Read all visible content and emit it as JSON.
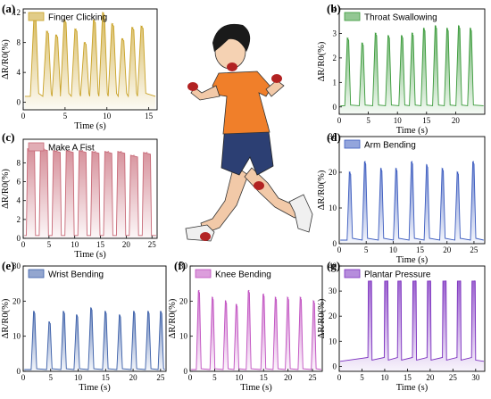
{
  "chart_data": [
    {
      "panel": "(a)",
      "type": "line",
      "legend": "Finger Clicking",
      "color": "#c9a227",
      "xlabel": "Time (s)",
      "ylabel": "ΔR/R0(%)",
      "xlim": [
        0,
        16
      ],
      "ylim": [
        -1,
        12.5
      ],
      "xticks": [
        0,
        5,
        10,
        15
      ],
      "yticks": [
        0,
        4,
        8,
        12
      ],
      "peaks_x": [
        1.4,
        2.9,
        4.0,
        5.0,
        6.3,
        7.4,
        8.5,
        9.6,
        10.7,
        11.9,
        13.1,
        14.2
      ],
      "peaks_y": [
        11.5,
        9.5,
        9.0,
        11.0,
        9.8,
        8.0,
        11.0,
        12.0,
        10.5,
        8.5,
        10.0,
        10.2
      ],
      "baseline": 0.8
    },
    {
      "panel": "(b)",
      "type": "line",
      "legend": "Throat Swallowing",
      "color": "#3a9a3a",
      "xlabel": "Time (s)",
      "ylabel": "ΔR/R0(%)",
      "xlim": [
        0,
        25
      ],
      "ylim": [
        -0.3,
        4
      ],
      "xticks": [
        0,
        5,
        10,
        15,
        20
      ],
      "yticks": [
        0,
        1,
        2,
        3,
        4
      ],
      "peaks_x": [
        1.5,
        4.0,
        6.3,
        8.5,
        10.8,
        12.6,
        14.6,
        16.6,
        18.6,
        20.6,
        22.6
      ],
      "peaks_y": [
        2.8,
        2.6,
        3.0,
        2.9,
        2.9,
        3.0,
        3.2,
        3.3,
        3.2,
        3.3,
        3.2
      ],
      "baseline": 0.05
    },
    {
      "panel": "(c)",
      "type": "line",
      "legend": "Make A Fist",
      "color": "#c86a78",
      "xlabel": "Time (s)",
      "ylabel": "ΔR/R0(%)",
      "xlim": [
        0,
        26
      ],
      "ylim": [
        0,
        10.5
      ],
      "xticks": [
        0,
        5,
        10,
        15,
        20,
        25
      ],
      "yticks": [
        0,
        2,
        4,
        6,
        8
      ],
      "peaks_x": [
        1.5,
        4.0,
        6.5,
        9.0,
        11.5,
        14.0,
        16.5,
        19.0,
        21.5,
        24.0
      ],
      "peaks_y": [
        9.5,
        9.5,
        9.3,
        9.3,
        9.3,
        9.2,
        9.2,
        9.2,
        8.8,
        9.1
      ],
      "baseline": 0.3,
      "shape": "plateau"
    },
    {
      "panel": "(d)",
      "type": "line",
      "legend": "Arm Bending",
      "color": "#3b5bbf",
      "xlabel": "Time (s)",
      "ylabel": "ΔR/R0(%)",
      "xlim": [
        0,
        27
      ],
      "ylim": [
        0,
        30
      ],
      "xticks": [
        0,
        5,
        10,
        15,
        20,
        25
      ],
      "yticks": [
        0,
        10,
        20,
        30
      ],
      "peaks_x": [
        2.0,
        4.8,
        7.8,
        10.6,
        13.5,
        16.3,
        19.2,
        22.0,
        24.9
      ],
      "peaks_y": [
        20,
        23,
        21,
        21,
        23,
        22,
        21,
        20,
        23
      ],
      "baseline": 1.0
    },
    {
      "panel": "(e)",
      "type": "line",
      "legend": "Wrist Bending",
      "color": "#3a5ea8",
      "xlabel": "Time (s)",
      "ylabel": "ΔR/R0(%)",
      "xlim": [
        0,
        26
      ],
      "ylim": [
        0,
        30
      ],
      "xticks": [
        0,
        5,
        10,
        15,
        20,
        25
      ],
      "yticks": [
        0,
        10,
        20,
        30
      ],
      "peaks_x": [
        2.0,
        4.8,
        7.4,
        9.8,
        12.4,
        15.0,
        17.6,
        20.2,
        22.8,
        25.1
      ],
      "peaks_y": [
        17,
        14,
        17,
        16,
        18,
        17,
        16,
        17,
        17,
        17
      ],
      "baseline": 0.5
    },
    {
      "panel": "(f)",
      "type": "line",
      "legend": "Knee Bending",
      "color": "#c04fc0",
      "xlabel": "Time (s)",
      "ylabel": "ΔR/R0(%)",
      "xlim": [
        0,
        27
      ],
      "ylim": [
        0,
        30
      ],
      "xticks": [
        0,
        5,
        10,
        15,
        20,
        25
      ],
      "yticks": [
        0,
        10,
        20,
        30
      ],
      "peaks_x": [
        1.8,
        4.6,
        7.3,
        9.5,
        12.0,
        15.0,
        17.5,
        20.0,
        22.6,
        25.3
      ],
      "peaks_y": [
        23,
        21,
        20,
        19,
        23,
        22,
        21,
        21,
        21,
        20
      ],
      "baseline": 0.5
    },
    {
      "panel": "(g)",
      "type": "line",
      "legend": "Plantar Pressure",
      "color": "#7b2fbf",
      "xlabel": "Time (s)",
      "ylabel": "ΔR/R0(%)",
      "xlim": [
        0,
        32
      ],
      "ylim": [
        -2,
        40
      ],
      "xticks": [
        0,
        5,
        10,
        15,
        20,
        25,
        30
      ],
      "yticks": [
        0,
        10,
        20,
        30,
        40
      ],
      "peaks_x": [
        7.0,
        10.6,
        13.5,
        16.8,
        20.0,
        23.4,
        26.6,
        29.8
      ],
      "peaks_y": [
        34,
        34,
        34,
        34,
        34,
        34,
        34,
        34
      ],
      "baseline": 2.0,
      "shape": "pressure"
    }
  ]
}
